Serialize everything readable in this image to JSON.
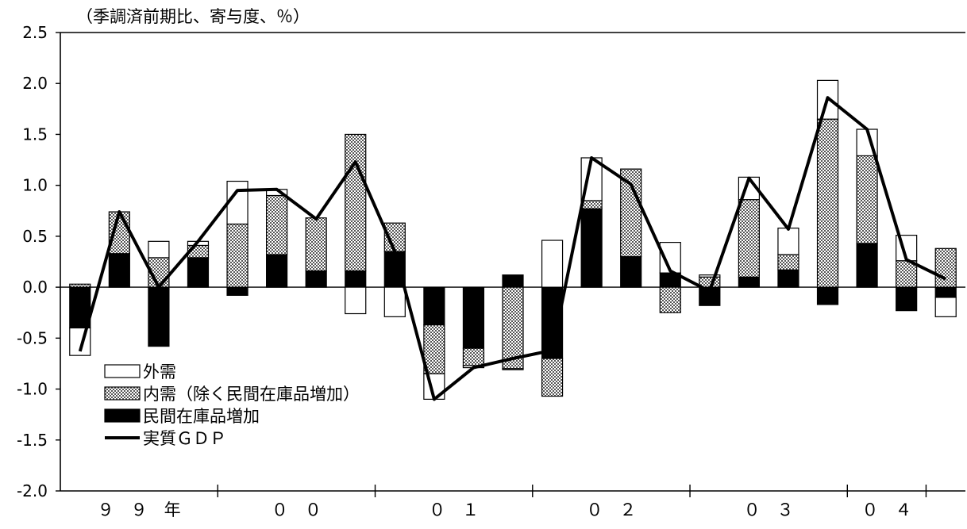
{
  "chart_data": {
    "type": "bar",
    "subtitle": "（季調済前期比、寄与度、％）",
    "ylim": [
      -2.0,
      2.5
    ],
    "y_ticks": [
      "2.5",
      "2.0",
      "1.5",
      "1.0",
      "0.5",
      "0.0",
      "-0.5",
      "-1.0",
      "-1.5",
      "-2.0"
    ],
    "y_tick_values": [
      2.5,
      2.0,
      1.5,
      1.0,
      0.5,
      0.0,
      -0.5,
      -1.0,
      -1.5,
      -2.0
    ],
    "year_labels": [
      {
        "text": "９　９　年",
        "start": 0,
        "end": 4
      },
      {
        "text": "０　０",
        "start": 4,
        "end": 8
      },
      {
        "text": "０　１",
        "start": 8,
        "end": 12
      },
      {
        "text": "０　２",
        "start": 12,
        "end": 16
      },
      {
        "text": "０　３",
        "start": 16,
        "end": 20
      },
      {
        "text": "０　４",
        "start": 20,
        "end": 22
      }
    ],
    "series": [
      {
        "name": "民間在庫品増加",
        "color": "#000000",
        "values": [
          -0.4,
          0.33,
          -0.58,
          0.29,
          -0.08,
          0.32,
          0.16,
          0.16,
          0.35,
          -0.37,
          -0.6,
          0.12,
          -0.7,
          0.77,
          0.3,
          0.14,
          -0.18,
          0.1,
          0.17,
          -0.17,
          0.43,
          -0.23,
          -0.1
        ]
      },
      {
        "name": "内需（除く民間在庫品増加）",
        "pattern": "dots",
        "values": [
          0.03,
          0.41,
          0.29,
          0.12,
          0.62,
          0.58,
          0.52,
          1.34,
          0.28,
          -0.48,
          -0.17,
          -0.8,
          -0.37,
          0.08,
          0.86,
          -0.25,
          0.1,
          0.76,
          0.15,
          1.65,
          0.86,
          0.26,
          0.38
        ]
      },
      {
        "name": "外需",
        "color": "#ffffff",
        "values": [
          -0.27,
          0.0,
          0.16,
          0.04,
          0.42,
          0.06,
          0.0,
          -0.26,
          -0.29,
          -0.25,
          -0.02,
          -0.01,
          0.46,
          0.42,
          0.0,
          0.3,
          0.02,
          0.22,
          0.26,
          0.38,
          0.26,
          0.25,
          -0.19
        ]
      },
      {
        "name": "実質ＧＤＰ",
        "type": "line",
        "color": "#000000",
        "values": [
          -0.63,
          0.74,
          0.0,
          0.45,
          0.95,
          0.96,
          0.67,
          1.23,
          0.35,
          -1.1,
          -0.79,
          -0.7,
          -0.62,
          1.27,
          1.01,
          0.16,
          -0.04,
          1.07,
          0.57,
          1.86,
          1.55,
          0.27,
          0.08
        ]
      }
    ],
    "legend_position": "bottom-left",
    "grid": false
  }
}
